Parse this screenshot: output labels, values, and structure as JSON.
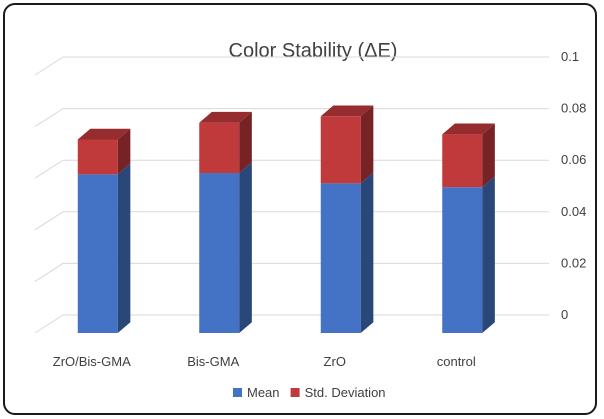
{
  "chart_data": {
    "type": "bar",
    "stacked": true,
    "three_d": true,
    "title": "Color Stability (ΔE)",
    "categories": [
      "ZrO/Bis-GMA",
      "Bis-GMA",
      "ZrO",
      "control"
    ],
    "series": [
      {
        "name": "Mean",
        "values": [
          0.0615,
          0.062,
          0.058,
          0.0565
        ],
        "color": "#4472C4"
      },
      {
        "name": "Std. Deviation",
        "values": [
          0.0135,
          0.0195,
          0.026,
          0.0205
        ],
        "color": "#C0393B"
      }
    ],
    "y_axis": {
      "min": 0,
      "max": 0.1,
      "ticks": [
        "0",
        "0.02",
        "0.04",
        "0.06",
        "0.08",
        "0.1"
      ],
      "position": "right"
    },
    "grid": true,
    "legend": "bottom"
  }
}
